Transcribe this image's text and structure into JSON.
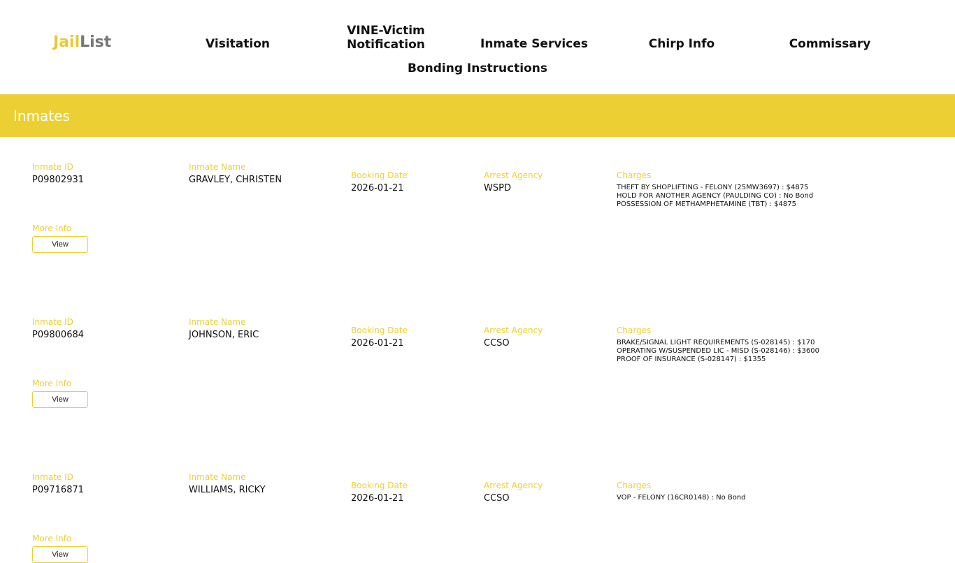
{
  "header": {
    "logo_a": "Jail",
    "logo_b": "List",
    "nav": [
      "Visitation",
      "VINE-Victim Notification",
      "Inmate Services",
      "Chirp Info",
      "Commissary",
      "Bonding Instructions"
    ]
  },
  "section_title": "Inmates",
  "labels": {
    "id": "Inmate ID",
    "name": "Inmate Name",
    "date": "Booking Date",
    "agency": "Arrest Agency",
    "charges": "Charges",
    "more": "More Info",
    "view": "View"
  },
  "inmates": [
    {
      "id": "P09802931",
      "name": "GRAVLEY, CHRISTEN",
      "date": "2026-01-21",
      "agency": "WSPD",
      "charges": [
        "THEFT BY SHOPLIFTING - FELONY (25MW3697) : $4875",
        "HOLD FOR ANOTHER AGENCY (PAULDING CO) : No Bond",
        "POSSESSION OF METHAMPHETAMINE (TBT) : $4875"
      ]
    },
    {
      "id": "P09800684",
      "name": "JOHNSON, ERIC",
      "date": "2026-01-21",
      "agency": "CCSO",
      "charges": [
        "BRAKE/SIGNAL LIGHT REQUIREMENTS (S-028145) : $170",
        "OPERATING W/SUSPENDED LIC - MISD (S-028146) : $3600",
        "PROOF OF INSURANCE (S-028147) : $1355"
      ]
    },
    {
      "id": "P09716871",
      "name": "WILLIAMS, RICKY",
      "date": "2026-01-21",
      "agency": "CCSO",
      "charges": [
        "VOP - FELONY (16CR0148) : No Bond"
      ]
    }
  ]
}
